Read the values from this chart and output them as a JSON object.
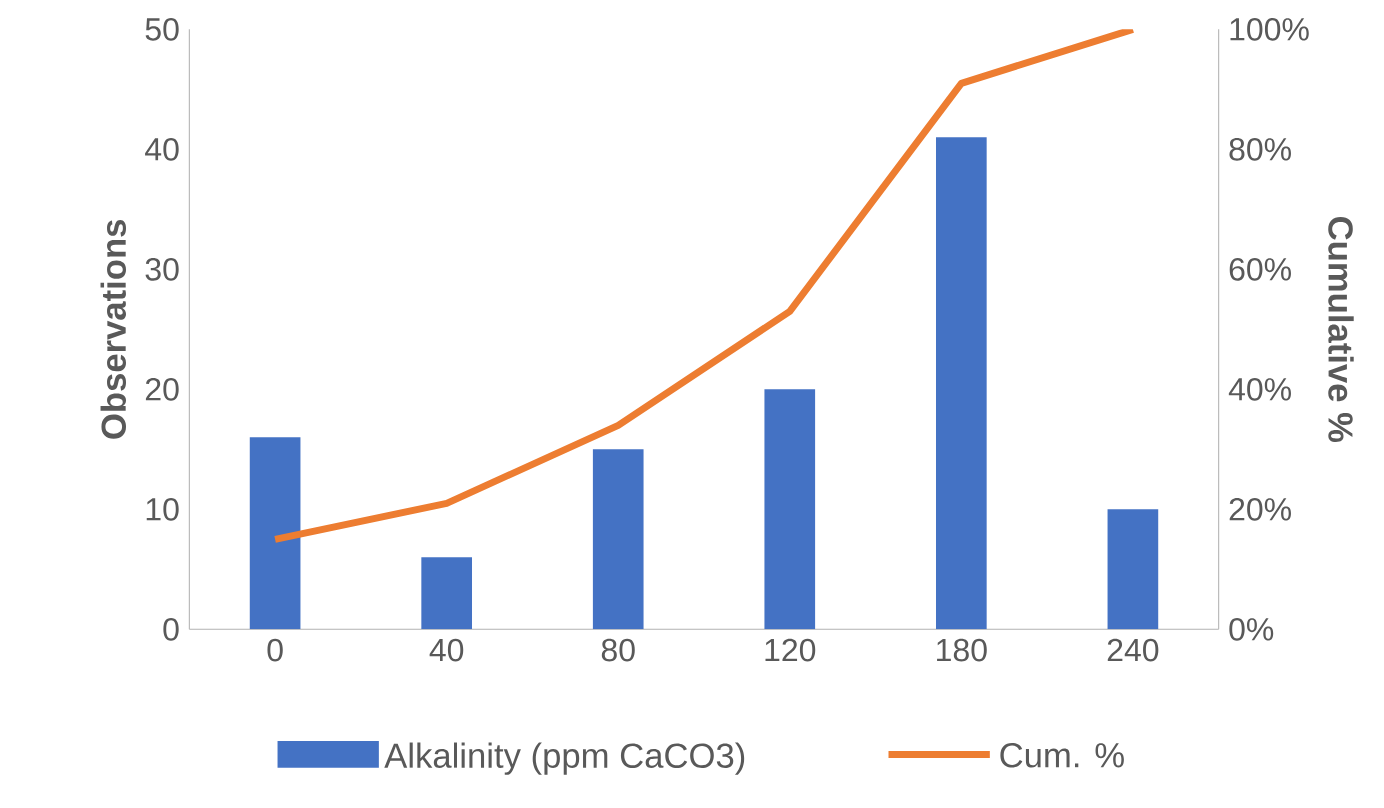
{
  "chart_data": {
    "type": "bar",
    "ylabel": "Observations",
    "y2label": "Cumulative %",
    "categories": [
      "0",
      "40",
      "80",
      "120",
      "180",
      "240"
    ],
    "series": [
      {
        "name": "Alkalinity (ppm CaCO3)",
        "color": "#4472c4",
        "values": [
          16,
          6,
          15,
          20,
          41,
          10
        ]
      },
      {
        "name": "Cum. %",
        "type": "line",
        "axis": "y2",
        "color": "#ed7d31",
        "values": [
          15,
          21,
          34,
          53,
          91,
          100
        ]
      }
    ],
    "ylim": [
      0,
      50
    ],
    "yticks": [
      0,
      10,
      20,
      30,
      40,
      50
    ],
    "y2lim": [
      0,
      100
    ],
    "y2ticks": [
      {
        "value": 0,
        "label": "0%"
      },
      {
        "value": 20,
        "label": "20%"
      },
      {
        "value": 40,
        "label": "40%"
      },
      {
        "value": 60,
        "label": "60%"
      },
      {
        "value": 80,
        "label": "80%"
      },
      {
        "value": 100,
        "label": "100%"
      }
    ],
    "legend": "bottom"
  }
}
